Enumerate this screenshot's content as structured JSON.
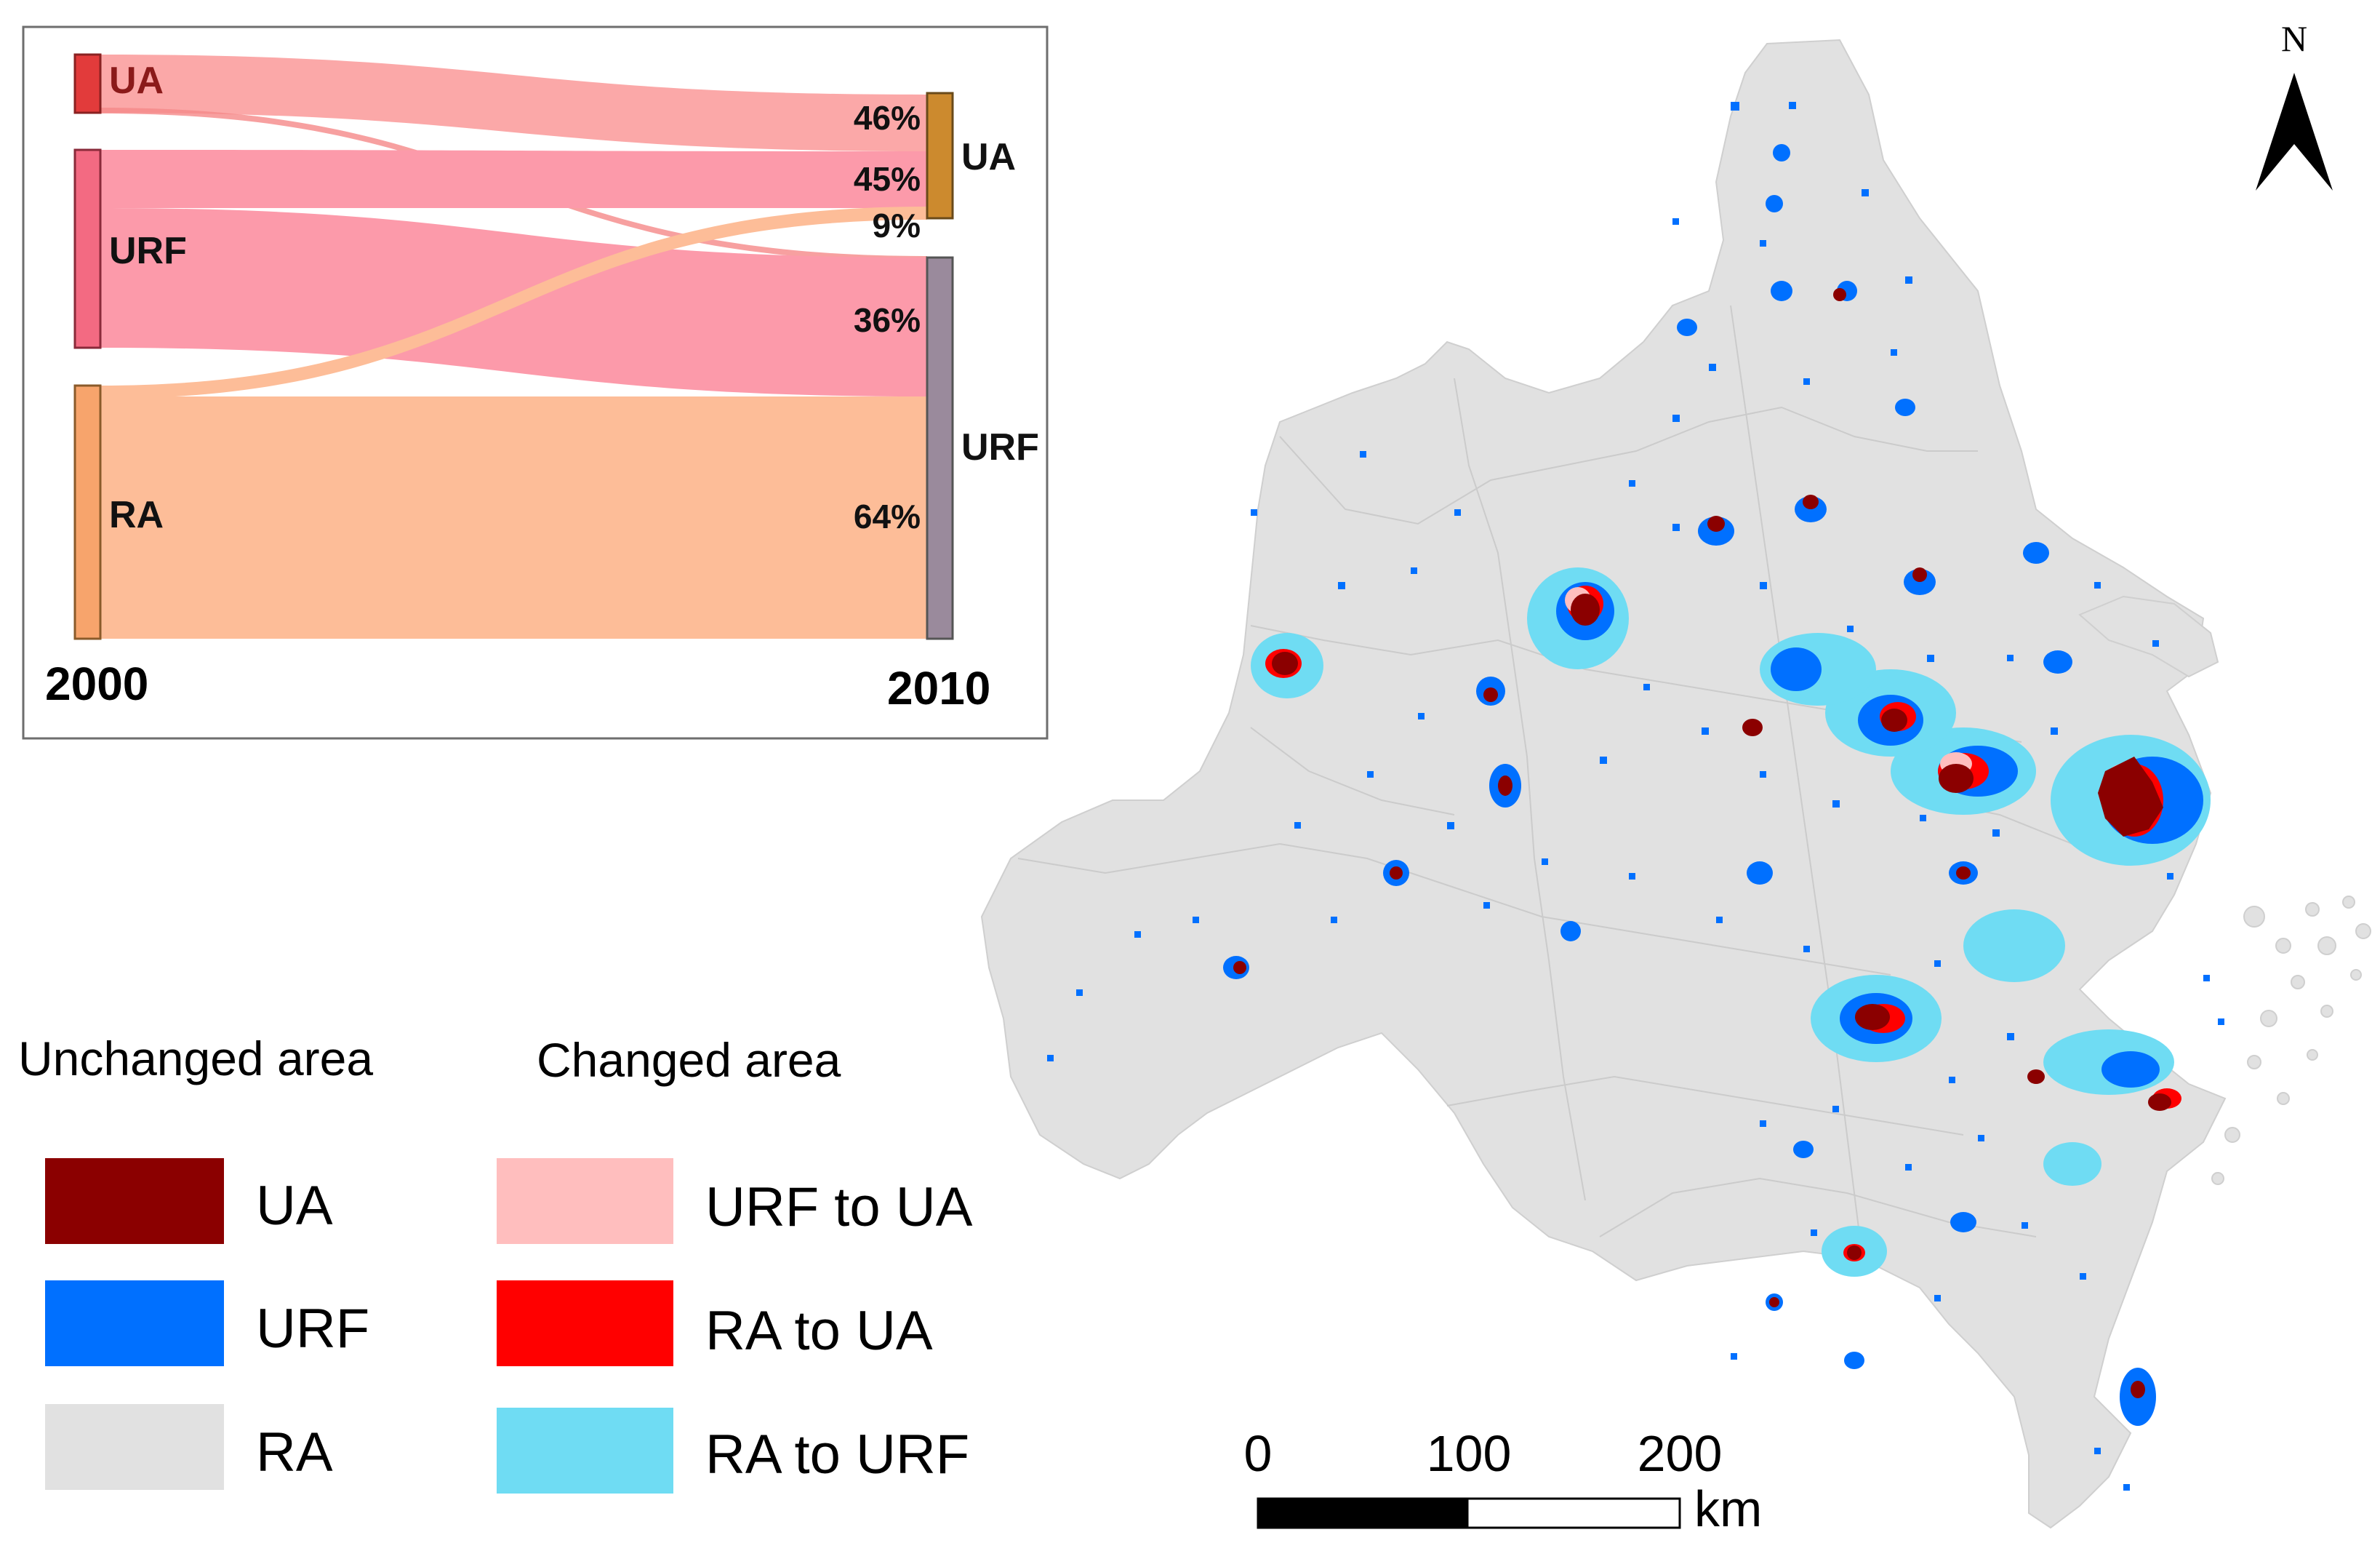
{
  "sankey": {
    "year_left": "2000",
    "year_right": "2010",
    "left_nodes": [
      {
        "label": "UA",
        "color": "#e23b3b",
        "text_color": "#8b1a1a"
      },
      {
        "label": "URF",
        "color": "#f36a82",
        "text_color": "#111111"
      },
      {
        "label": "RA",
        "color": "#f7a46c",
        "text_color": "#111111"
      }
    ],
    "right_nodes": [
      {
        "label": "UA",
        "color": "#cc8a2e"
      },
      {
        "label": "URF",
        "color": "#9a8a9c"
      }
    ],
    "percents": {
      "ua_from_ua": "46%",
      "ua_from_urf": "45%",
      "ua_from_ra": "9%",
      "urf_from_urf": "36%",
      "urf_from_ra": "64%"
    },
    "flow_colors": {
      "from_ua": "#fba3a3",
      "from_urf": "#fc9aaa",
      "from_ra": "#fdbd98"
    }
  },
  "legend": {
    "unchanged_title": "Unchanged area",
    "changed_title": "Changed area",
    "unchanged": [
      {
        "label": "UA",
        "color": "#8b0000"
      },
      {
        "label": "URF",
        "color": "#0070ff"
      },
      {
        "label": "RA",
        "color": "#e1e1e1"
      }
    ],
    "changed": [
      {
        "label": "URF to UA",
        "color": "#ffbebe"
      },
      {
        "label": "RA to UA",
        "color": "#ff0000"
      },
      {
        "label": "RA to URF",
        "color": "#6fdcf3"
      }
    ]
  },
  "scale_bar": {
    "ticks": [
      "0",
      "100",
      "200"
    ],
    "unit": "km"
  },
  "north_arrow": {
    "label": "N"
  },
  "map": {
    "base_color": "#e1e1e1",
    "boundary_color": "#cfcfcf",
    "ua_color": "#8b0000",
    "urf_color": "#0070ff",
    "urf_to_ua_color": "#ffbebe",
    "ra_to_ua_color": "#ff0000",
    "ra_to_urf_color": "#6fdcf3"
  }
}
